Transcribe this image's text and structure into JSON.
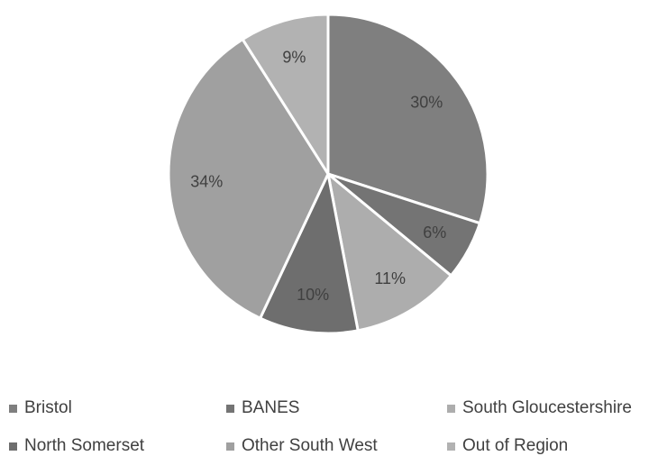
{
  "chart_data": {
    "type": "pie",
    "categories": [
      "Bristol",
      "BANES",
      "South Gloucestershire",
      "North Somerset",
      "Other South West",
      "Out of Region"
    ],
    "values": [
      30,
      6,
      11,
      10,
      34,
      9
    ],
    "labels": [
      "30%",
      "6%",
      "11%",
      "10%",
      "34%",
      "9%"
    ],
    "colors": [
      "#7f7f7f",
      "#747474",
      "#adadad",
      "#6e6e6e",
      "#a0a0a0",
      "#b2b2b2"
    ],
    "legend": "bottom"
  }
}
